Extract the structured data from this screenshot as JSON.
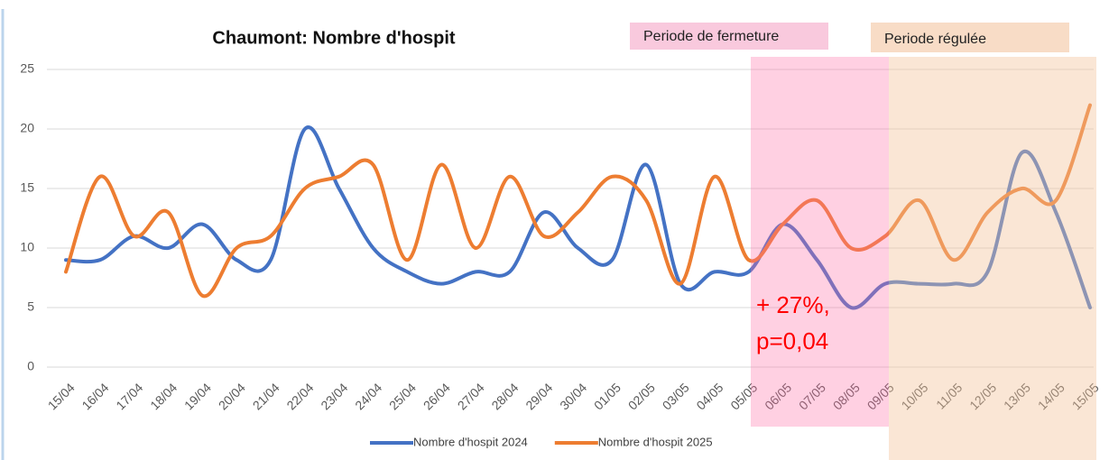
{
  "chart_data": {
    "type": "line",
    "title": "Chaumont: Nombre d'hospit",
    "categories": [
      "15/04",
      "16/04",
      "17/04",
      "18/04",
      "19/04",
      "20/04",
      "21/04",
      "22/04",
      "23/04",
      "24/04",
      "25/04",
      "26/04",
      "27/04",
      "28/04",
      "29/04",
      "30/04",
      "01/05",
      "02/05",
      "03/05",
      "04/05",
      "05/05",
      "06/05",
      "07/05",
      "08/05",
      "09/05",
      "10/05",
      "11/05",
      "12/05",
      "13/05",
      "14/05",
      "15/05"
    ],
    "series": [
      {
        "name": "Nombre d'hospit 2024",
        "color": "#4472c4",
        "values": [
          9,
          9,
          11,
          10,
          12,
          9,
          9,
          20,
          15,
          10,
          8,
          7,
          8,
          8,
          13,
          10,
          9,
          17,
          7,
          8,
          8,
          12,
          9,
          5,
          7,
          7,
          7,
          8,
          18,
          13,
          5
        ]
      },
      {
        "name": "Nombre d'hospit 2025",
        "color": "#ed7d31",
        "values": [
          8,
          16,
          11,
          13,
          6,
          10,
          11,
          15,
          16,
          17,
          9,
          17,
          10,
          16,
          11,
          13,
          16,
          14,
          7,
          16,
          9,
          12,
          14,
          10,
          11,
          14,
          9,
          13,
          15,
          14,
          22
        ]
      }
    ],
    "ylim": [
      0,
      25
    ],
    "yticks": [
      0,
      5,
      10,
      15,
      20,
      25
    ],
    "grid": true,
    "smooth": true,
    "legend": "bottom",
    "regions": [
      "Periode de fermeture",
      "Periode régulée"
    ],
    "annotation": [
      "+ 27%,",
      "p=0,04"
    ]
  }
}
